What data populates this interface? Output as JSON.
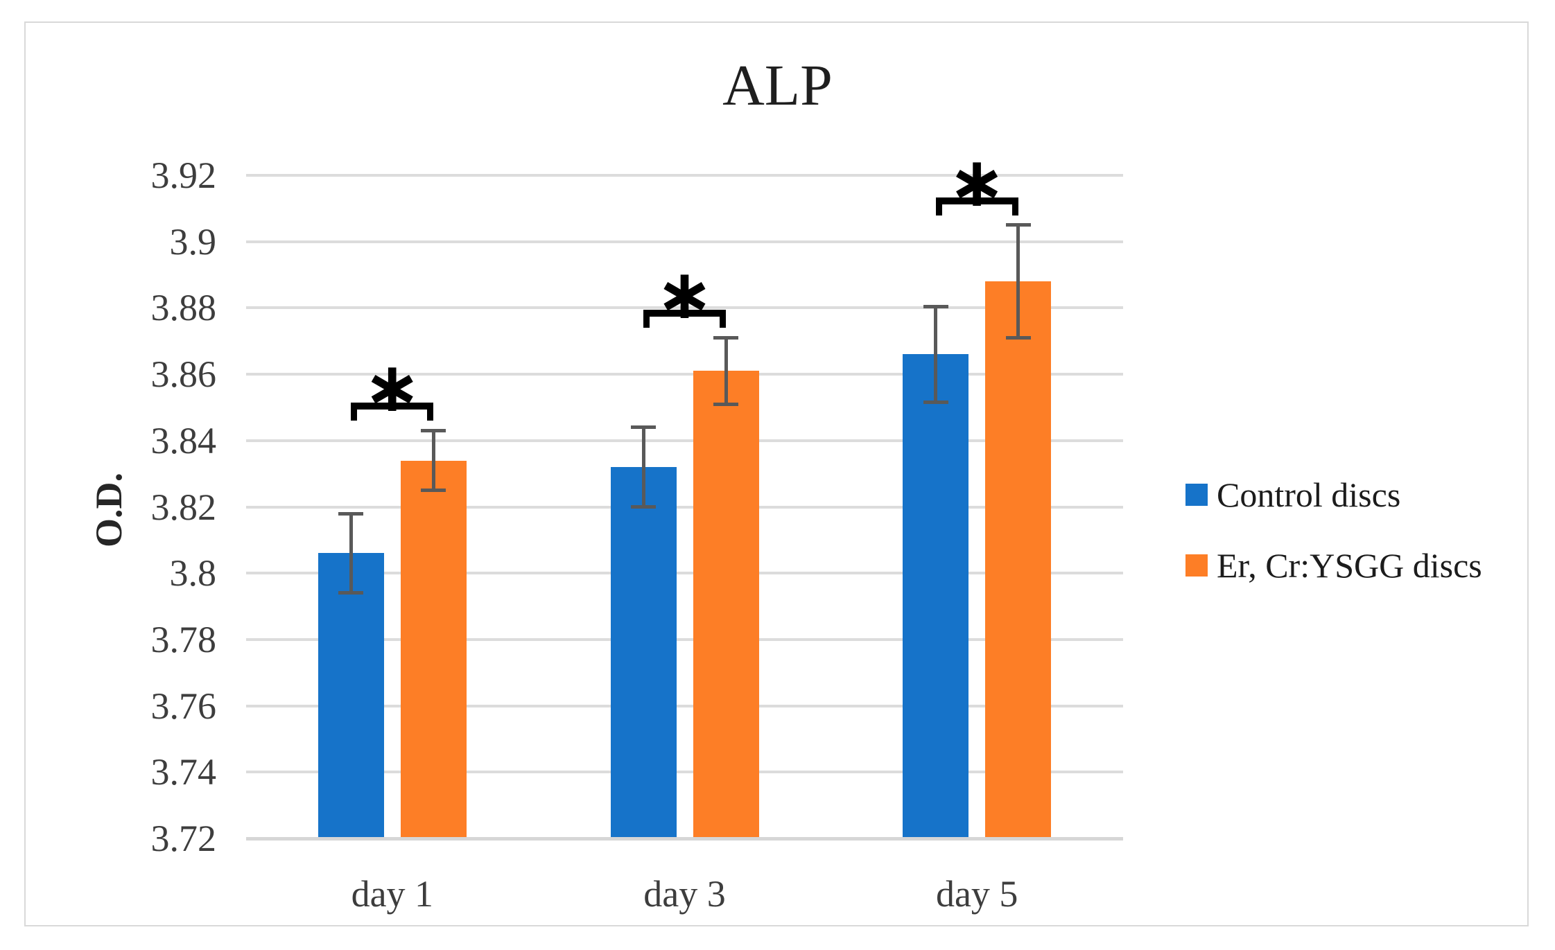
{
  "chart_data": {
    "type": "bar",
    "title": "ALP",
    "xlabel": "",
    "ylabel": "O.D.",
    "ylim": [
      3.72,
      3.92
    ],
    "ytick_step": 0.02,
    "y_tick_labels": [
      "3.92",
      "3.9",
      "3.88",
      "3.86",
      "3.84",
      "3.82",
      "3.8",
      "3.78",
      "3.76",
      "3.74",
      "3.72"
    ],
    "categories": [
      "day 1",
      "day 3",
      "day 5"
    ],
    "series": [
      {
        "name": "Control discs",
        "color": "#1673C9",
        "values": [
          3.806,
          3.832,
          3.866
        ],
        "errors": [
          0.012,
          0.012,
          0.0145
        ]
      },
      {
        "name": "Er, Cr:YSGG discs",
        "color": "#FD7E26",
        "values": [
          3.834,
          3.861,
          3.888
        ],
        "errors": [
          0.009,
          0.01,
          0.017
        ]
      }
    ],
    "error_bar_color": "#595959",
    "significance": [
      {
        "category": "day 1",
        "symbol": "*"
      },
      {
        "category": "day 3",
        "symbol": "*"
      },
      {
        "category": "day 5",
        "symbol": "*"
      }
    ],
    "grid": true,
    "legend_position": "right"
  }
}
